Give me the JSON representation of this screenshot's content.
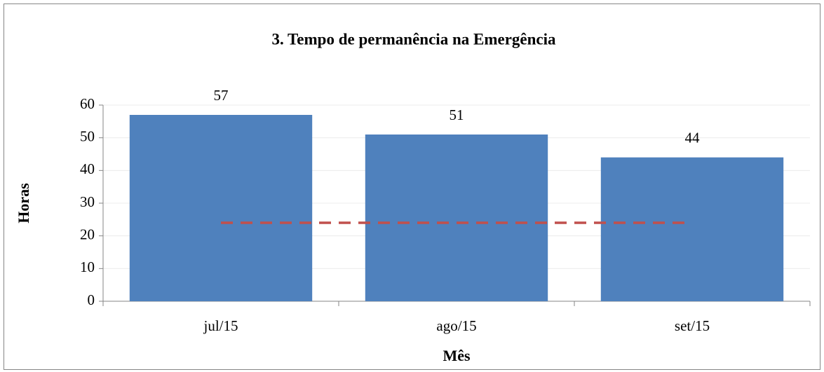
{
  "chart_data": {
    "type": "bar",
    "title": "3. Tempo de permanência na Emergência",
    "x_label": "Mês",
    "y_label": "Horas",
    "categories": [
      "jul/15",
      "ago/15",
      "set/15"
    ],
    "series": [
      {
        "type": "bar",
        "color": "#4f81bd",
        "values": [
          57,
          51,
          44
        ],
        "value_labels": [
          "57",
          "51",
          "44"
        ]
      },
      {
        "type": "line",
        "color": "#c0504d",
        "dashed": true,
        "values": [
          24,
          24,
          24
        ]
      }
    ],
    "ylim": [
      0,
      60
    ],
    "yticks": [
      0,
      10,
      20,
      30,
      40,
      50,
      60
    ],
    "grid": true
  }
}
